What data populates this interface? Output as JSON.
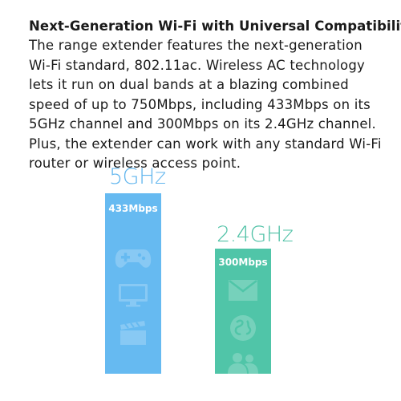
{
  "headline": "Next-Generation Wi-Fi with Universal Compatibility",
  "body": "The range extender features the next-generation Wi-Fi standard, 802.11ac. Wireless AC technology lets it run on dual bands at a blazing combined speed of up to 750Mbps, including 433Mbps on its 5GHz channel and 300Mbps on its 2.4GHz channel. Plus, the extender can work with any standard Wi-Fi router or wireless access point.",
  "bands": [
    {
      "label": "5GHz",
      "speed_label": "433Mbps",
      "speed_mbps": 433,
      "color": "#66baf1",
      "icons": [
        "gamepad-icon",
        "monitor-icon",
        "clapperboard-icon"
      ]
    },
    {
      "label": "2.4GHz",
      "speed_label": "300Mbps",
      "speed_mbps": 300,
      "color": "#50c5a8",
      "icons": [
        "mail-icon",
        "globe-icon",
        "users-icon"
      ]
    }
  ]
}
